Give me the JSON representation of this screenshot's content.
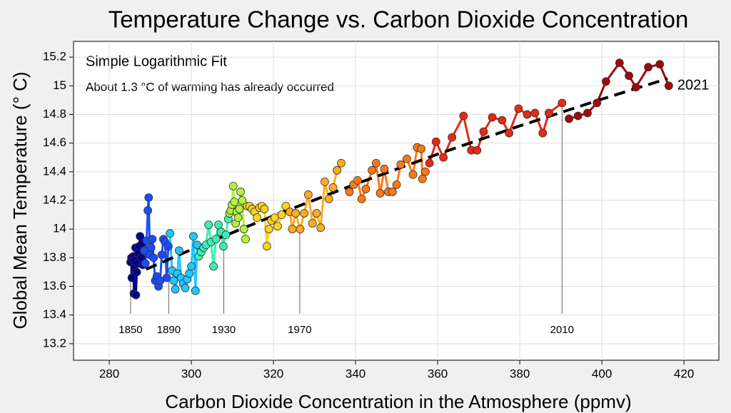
{
  "chart_data": {
    "type": "scatter",
    "title": "Temperature Change vs. Carbon Dioxide Concentration",
    "xlabel": "Carbon Dioxide Concentration in the Atmosphere (ppmv)",
    "ylabel": "Global Mean Temperature (° C)",
    "subtitle": "Simple Logarithmic Fit",
    "note": "About 1.3 °C of warming has already occurred",
    "end_label": "2021",
    "xlim": [
      271.3,
      428.5
    ],
    "ylim": [
      13.085,
      15.31
    ],
    "xticks": [
      280,
      300,
      320,
      340,
      360,
      380,
      400,
      420
    ],
    "yticks": [
      13.2,
      13.4,
      13.6,
      13.8,
      14,
      14.2,
      14.4,
      14.6,
      14.8,
      15,
      15.2
    ],
    "grid": true,
    "series": [
      {
        "color": "#00008b",
        "x": [
          285.2,
          285.4,
          285.5,
          285.7,
          285.9,
          286.0,
          286.2,
          286.4,
          286.5,
          286.7,
          286.9,
          287.1,
          287.3,
          287.5,
          287.8,
          288.0,
          288.2
        ],
        "values": [
          13.77,
          13.8,
          13.66,
          13.79,
          13.81,
          13.55,
          13.78,
          13.87,
          13.54,
          13.7,
          13.76,
          13.83,
          13.88,
          13.95,
          13.8,
          13.9,
          13.75
        ]
      },
      {
        "color": "#1a4cff",
        "x": [
          288.5,
          288.8,
          289.1,
          289.4,
          289.6,
          289.9,
          290.2,
          290.5,
          290.8,
          291.2,
          291.6,
          292,
          292.4,
          292.8,
          293.2,
          293.6,
          294,
          294.4
        ],
        "values": [
          13.85,
          13.76,
          13.92,
          14.13,
          14.22,
          13.82,
          13.87,
          13.93,
          13.8,
          13.64,
          13.67,
          13.6,
          13.64,
          13.82,
          13.93,
          13.91,
          13.66,
          13.88
        ]
      },
      {
        "color": "#1ec8ff",
        "x": [
          294.8,
          295.3,
          295.7,
          296.1,
          296.6,
          297,
          297.5,
          298,
          298.5,
          299,
          299.5,
          300,
          300.5,
          301,
          301.4
        ],
        "values": [
          13.97,
          13.71,
          13.64,
          13.58,
          13.69,
          13.85,
          13.66,
          13.62,
          13.59,
          13.65,
          13.69,
          13.74,
          13.95,
          13.57,
          13.89
        ]
      },
      {
        "color": "#3cf0b4",
        "x": [
          301.8,
          302.4,
          303,
          303.6,
          304.2,
          304.8,
          305.4,
          306,
          306.6,
          307.2,
          307.8,
          308.4,
          309
        ],
        "values": [
          13.81,
          13.84,
          13.87,
          13.89,
          14.03,
          13.91,
          13.74,
          13.93,
          14.03,
          13.98,
          13.88,
          13.96,
          14.07
        ]
      },
      {
        "color": "#b4f03c",
        "x": [
          309.3,
          309.6,
          309.9,
          310.2,
          310.5,
          310.8,
          311.1,
          311.4,
          311.7,
          312,
          312.4,
          312.8,
          313.2
        ],
        "values": [
          14.11,
          14.13,
          14.17,
          14.3,
          14.19,
          14.04,
          14.12,
          14.08,
          14.14,
          14.26,
          14.2,
          14.0,
          13.93
        ]
      },
      {
        "color": "#ffd21e",
        "x": [
          313.6,
          314.2,
          314.8,
          315.4,
          316,
          316.6,
          317.2,
          317.8,
          318.4,
          318.9,
          319.5,
          320.3,
          321,
          322,
          323
        ],
        "values": [
          14.16,
          14.16,
          14.14,
          14.12,
          14.08,
          14.15,
          14.16,
          14.14,
          13.88,
          14.0,
          14.06,
          14.08,
          14.02,
          14.1,
          14.16
        ]
      },
      {
        "color": "#ffaa1e",
        "x": [
          324,
          324.6,
          325.4,
          326.5,
          327.5,
          328.5,
          329.5,
          330.5,
          331.5,
          332.5,
          333.5,
          334.5,
          335.5,
          336.5
        ],
        "values": [
          14.12,
          14.0,
          14.11,
          14.0,
          14.11,
          14.24,
          14.04,
          14.11,
          14.01,
          14.33,
          14.21,
          14.29,
          14.41,
          14.46
        ]
      },
      {
        "color": "#ff7814",
        "x": [
          338.5,
          339.5,
          340.5,
          341.5,
          342.5,
          344,
          345,
          346,
          347,
          348,
          349,
          350,
          351,
          352.5,
          354,
          355,
          356,
          356.3,
          357
        ],
        "values": [
          14.26,
          14.31,
          14.34,
          14.21,
          14.28,
          14.41,
          14.46,
          14.25,
          14.42,
          14.26,
          14.26,
          14.31,
          14.45,
          14.49,
          14.38,
          14.57,
          14.56,
          14.35,
          14.4
        ]
      },
      {
        "color": "#e62814",
        "x": [
          358,
          359.6,
          361.4,
          363.5,
          366.3,
          368.2,
          369.6,
          371.2,
          373.3,
          375.7,
          377.4,
          379.7,
          381.8,
          383.7,
          385.6,
          387.1,
          390.3
        ],
        "values": [
          14.46,
          14.61,
          14.5,
          14.64,
          14.79,
          14.55,
          14.55,
          14.68,
          14.78,
          14.76,
          14.67,
          14.84,
          14.8,
          14.81,
          14.67,
          14.81,
          14.88
        ]
      },
      {
        "color": "#a00a0a",
        "x": [
          392,
          394.2,
          396.5,
          398.8,
          401,
          404.3,
          406.6,
          408.3,
          411.3,
          414.1,
          416.3
        ],
        "values": [
          14.77,
          14.79,
          14.81,
          14.88,
          15.03,
          15.16,
          15.07,
          14.99,
          15.13,
          15.15,
          15.0
        ]
      }
    ],
    "fit": {
      "x": [
        285,
        300,
        320,
        340,
        360,
        380,
        400,
        416
      ],
      "values": [
        13.67,
        13.857,
        14.093,
        14.314,
        14.523,
        14.72,
        14.907,
        15.05
      ]
    },
    "annotations": [
      {
        "text": "1850",
        "x": 285.2,
        "y": 13.77
      },
      {
        "text": "1890",
        "x": 294.5,
        "y": 13.66
      },
      {
        "text": "1930",
        "x": 307.9,
        "y": 13.98
      },
      {
        "text": "1970",
        "x": 326.4,
        "y": 14.0
      },
      {
        "text": "2010",
        "x": 390.3,
        "y": 14.88
      }
    ]
  }
}
